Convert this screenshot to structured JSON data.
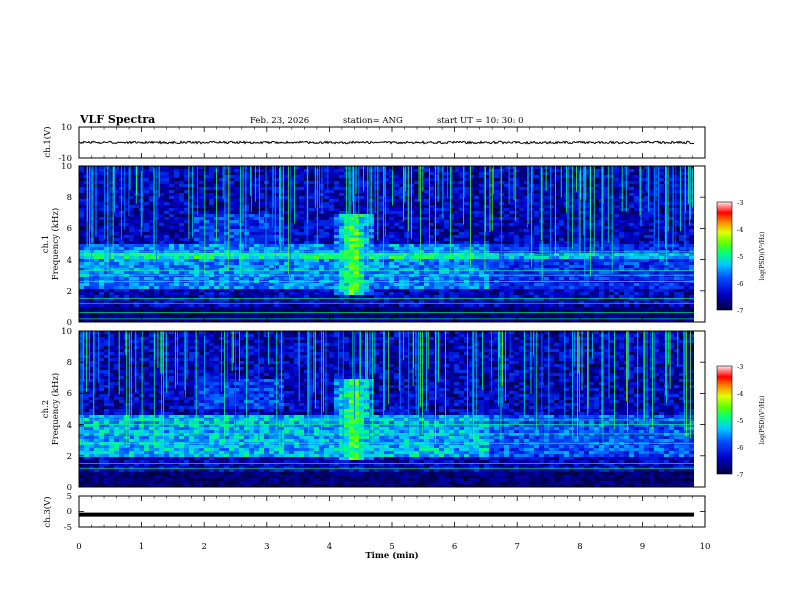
{
  "header": {
    "title": "VLF Spectra",
    "date": "Feb. 23, 2026",
    "station": "station= ANG",
    "start": "start  UT =   10: 30: 0"
  },
  "chart_data": [
    {
      "type": "line",
      "name": "ch1-waveform",
      "ylabel": "ch.1(V)",
      "ylim": [
        -10,
        10
      ],
      "y_ticks": [
        "10",
        "-10"
      ],
      "y_level": 0,
      "xlim": [
        0,
        10
      ]
    },
    {
      "type": "heatmap",
      "name": "ch1-spectrogram",
      "ylabel_channel": "ch.1",
      "ylabel": "Frequency  (kHz)",
      "xlim": [
        0,
        10
      ],
      "ylim": [
        0,
        10
      ],
      "y_ticks": [
        "0",
        "2",
        "4",
        "6",
        "8",
        "10"
      ],
      "colorbar": {
        "label": "log(PSD)(V²/Hz)",
        "ticks": [
          "-3",
          "-4",
          "-5",
          "-6",
          "-7"
        ],
        "range": [
          -7,
          -3
        ]
      },
      "emission_bands": [
        {
          "f_low": 2.2,
          "f_high": 5.0,
          "level": -5.6
        },
        {
          "f_low": 4.2,
          "f_high": 4.6,
          "level": -5.0
        }
      ],
      "burst_event": {
        "t_start": 4.0,
        "t_end": 4.7,
        "f_low": 1.8,
        "f_high": 7.0
      },
      "persistent_lines_khz": [
        0.2,
        0.6,
        1.2,
        1.5,
        2.6,
        3.0,
        3.3,
        4.3,
        4.5
      ]
    },
    {
      "type": "heatmap",
      "name": "ch2-spectrogram",
      "ylabel_channel": "ch.2",
      "ylabel": "Frequency  (kHz)",
      "xlim": [
        0,
        10
      ],
      "ylim": [
        0,
        10
      ],
      "y_ticks": [
        "0",
        "2",
        "4",
        "6",
        "8",
        "10"
      ],
      "colorbar": {
        "label": "log(PSD)(V²/Hz)",
        "ticks": [
          "-3",
          "-4",
          "-5",
          "-6",
          "-7"
        ],
        "range": [
          -7,
          -3
        ]
      },
      "emission_bands": [
        {
          "f_low": 2.0,
          "f_high": 4.8,
          "level": -5.4
        }
      ],
      "burst_event": {
        "t_start": 4.0,
        "t_end": 4.7,
        "f_low": 1.8,
        "f_high": 7.0
      },
      "persistent_lines_khz": [
        1.2,
        1.5,
        2.8,
        3.4,
        4.0,
        4.3
      ]
    },
    {
      "type": "line",
      "name": "ch3-waveform",
      "ylabel": "ch.3(V)",
      "ylim": [
        -5,
        5
      ],
      "y_ticks": [
        "5",
        "0",
        "-5"
      ],
      "y_level": -1,
      "xlim": [
        0,
        10
      ]
    }
  ],
  "x_axis": {
    "label": "Time  (min)",
    "ticks": [
      "0",
      "1",
      "2",
      "3",
      "4",
      "5",
      "6",
      "7",
      "8",
      "9",
      "10"
    ]
  },
  "colors": {
    "axis": "#000000",
    "background": "#000000",
    "trace": "#000000"
  }
}
